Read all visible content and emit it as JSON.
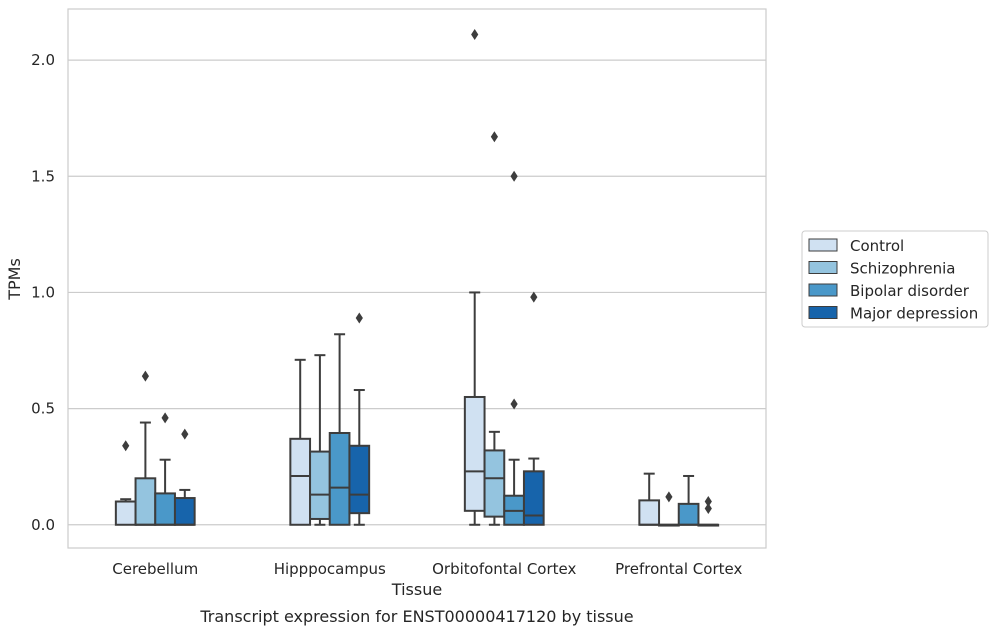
{
  "caption": "Transcript expression for ENST00000417120 by tissue",
  "chart_data": {
    "type": "boxplot",
    "xlabel": "Tissue",
    "ylabel": "TPMs",
    "ylim": [
      -0.1,
      2.22
    ],
    "yticks": [
      0.0,
      0.5,
      1.0,
      1.5,
      2.0
    ],
    "ytick_labels": [
      "0.0",
      "0.5",
      "1.0",
      "1.5",
      "2.0"
    ],
    "grid": "horizontal",
    "legend_position": "right",
    "categories": [
      "Cerebellum",
      "Hipppocampus",
      "Orbitofontal Cortex",
      "Prefrontal Cortex"
    ],
    "series": [
      {
        "name": "Control",
        "color": "#d0e1f2",
        "boxes": [
          {
            "q1": 0.0,
            "median": 0.1,
            "q3": 0.1,
            "whislo": 0.0,
            "whishi": 0.11,
            "fliers": [
              0.34
            ]
          },
          {
            "q1": 0.0,
            "median": 0.21,
            "q3": 0.37,
            "whislo": 0.0,
            "whishi": 0.71,
            "fliers": []
          },
          {
            "q1": 0.06,
            "median": 0.23,
            "q3": 0.55,
            "whislo": 0.0,
            "whishi": 1.0,
            "fliers": [
              2.11
            ]
          },
          {
            "q1": 0.0,
            "median": 0.0,
            "q3": 0.105,
            "whislo": 0.0,
            "whishi": 0.22,
            "fliers": []
          }
        ]
      },
      {
        "name": "Schizophrenia",
        "color": "#94c4df",
        "boxes": [
          {
            "q1": 0.0,
            "median": 0.0,
            "q3": 0.2,
            "whislo": 0.0,
            "whishi": 0.44,
            "fliers": [
              0.64
            ]
          },
          {
            "q1": 0.025,
            "median": 0.13,
            "q3": 0.315,
            "whislo": 0.0,
            "whishi": 0.73,
            "fliers": []
          },
          {
            "q1": 0.035,
            "median": 0.2,
            "q3": 0.32,
            "whislo": 0.0,
            "whishi": 0.4,
            "fliers": [
              1.67
            ]
          },
          {
            "q1": 0.0,
            "median": 0.0,
            "q3": 0.0,
            "whislo": 0.0,
            "whishi": 0.0,
            "fliers": [
              0.12
            ]
          }
        ]
      },
      {
        "name": "Bipolar disorder",
        "color": "#4a98c9",
        "boxes": [
          {
            "q1": 0.0,
            "median": 0.0,
            "q3": 0.135,
            "whislo": 0.0,
            "whishi": 0.28,
            "fliers": [
              0.46
            ]
          },
          {
            "q1": 0.0,
            "median": 0.16,
            "q3": 0.395,
            "whislo": 0.0,
            "whishi": 0.82,
            "fliers": []
          },
          {
            "q1": 0.0,
            "median": 0.06,
            "q3": 0.125,
            "whislo": 0.0,
            "whishi": 0.28,
            "fliers": [
              1.5,
              0.52
            ]
          },
          {
            "q1": 0.0,
            "median": 0.0,
            "q3": 0.09,
            "whislo": 0.0,
            "whishi": 0.21,
            "fliers": []
          }
        ]
      },
      {
        "name": "Major depression",
        "color": "#1764ab",
        "boxes": [
          {
            "q1": 0.0,
            "median": 0.0,
            "q3": 0.115,
            "whislo": 0.0,
            "whishi": 0.15,
            "fliers": [
              0.39
            ]
          },
          {
            "q1": 0.05,
            "median": 0.13,
            "q3": 0.34,
            "whislo": 0.0,
            "whishi": 0.58,
            "fliers": [
              0.89
            ]
          },
          {
            "q1": 0.0,
            "median": 0.04,
            "q3": 0.23,
            "whislo": 0.0,
            "whishi": 0.285,
            "fliers": [
              0.98
            ]
          },
          {
            "q1": 0.0,
            "median": 0.0,
            "q3": 0.0,
            "whislo": 0.0,
            "whishi": 0.0,
            "fliers": [
              0.1,
              0.07
            ]
          }
        ]
      }
    ]
  }
}
